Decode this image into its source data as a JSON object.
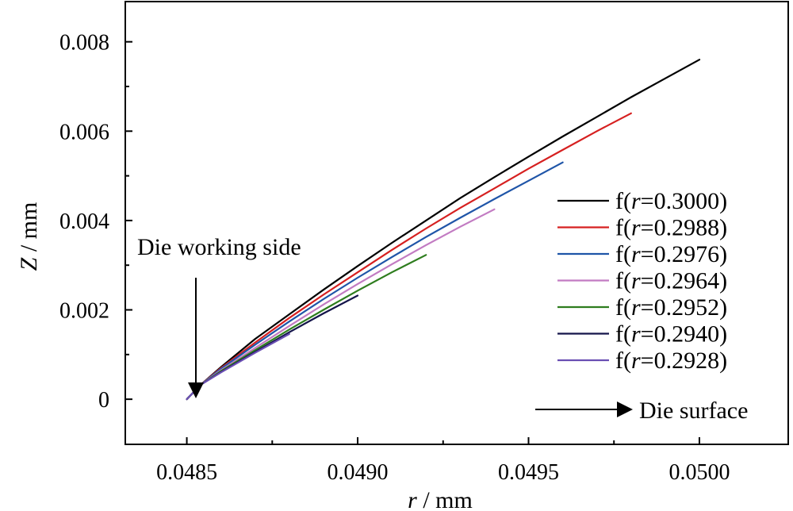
{
  "chart_data": {
    "type": "line",
    "title": "",
    "xlabel": {
      "var": "r",
      "unit": " / mm"
    },
    "ylabel": {
      "var": "Z",
      "unit": " / mm"
    },
    "xlim": [
      0.04832,
      0.05026
    ],
    "ylim": [
      -0.00101,
      0.0089
    ],
    "xticks": [
      0.0485,
      0.049,
      0.0495,
      0.05
    ],
    "xtick_labels": [
      "0.0485",
      "0.0490",
      "0.0495",
      "0.0500"
    ],
    "yticks": [
      0,
      0.002,
      0.004,
      0.006,
      0.008
    ],
    "ytick_labels": [
      "0",
      "0.002",
      "0.004",
      "0.006",
      "0.008"
    ],
    "grid": false,
    "legend_position": "right",
    "series": [
      {
        "name": {
          "pre": "f(",
          "var": "r",
          "post": "=0.3000)"
        },
        "color": "#000000",
        "x": [
          0.0485,
          0.04854,
          0.0486,
          0.0487,
          0.0488,
          0.0489,
          0.049,
          0.0491,
          0.0492,
          0.0493,
          0.0494,
          0.0495,
          0.0496,
          0.0497,
          0.0498,
          0.0499,
          0.05
        ],
        "y": [
          0,
          0.00032,
          0.00072,
          0.00135,
          0.0019,
          0.00245,
          0.00298,
          0.0035,
          0.004,
          0.0045,
          0.00497,
          0.00543,
          0.00588,
          0.00632,
          0.00676,
          0.00718,
          0.0076
        ]
      },
      {
        "name": {
          "pre": "f(",
          "var": "r",
          "post": "=0.2988)"
        },
        "color": "#d62020",
        "x": [
          0.0485,
          0.04854,
          0.0486,
          0.0487,
          0.0488,
          0.0489,
          0.049,
          0.0491,
          0.0492,
          0.0493,
          0.0494,
          0.0495,
          0.0496,
          0.0497,
          0.0498
        ],
        "y": [
          0,
          0.00032,
          0.0007,
          0.00127,
          0.00182,
          0.00234,
          0.00284,
          0.00334,
          0.00382,
          0.00428,
          0.00472,
          0.00516,
          0.00558,
          0.006,
          0.0064
        ]
      },
      {
        "name": {
          "pre": "f(",
          "var": "r",
          "post": "=0.2976)"
        },
        "color": "#1f55a8",
        "x": [
          0.0485,
          0.04854,
          0.0486,
          0.0487,
          0.0488,
          0.0489,
          0.049,
          0.0491,
          0.0492,
          0.0493,
          0.0494,
          0.0495,
          0.0496
        ],
        "y": [
          0,
          0.00032,
          0.00068,
          0.00122,
          0.00174,
          0.00224,
          0.00272,
          0.00318,
          0.00363,
          0.00406,
          0.00448,
          0.00489,
          0.0053
        ]
      },
      {
        "name": {
          "pre": "f(",
          "var": "r",
          "post": "=0.2964)"
        },
        "color": "#c27bc2",
        "x": [
          0.0485,
          0.04854,
          0.0486,
          0.0487,
          0.0488,
          0.0489,
          0.049,
          0.0491,
          0.0492,
          0.0493,
          0.0494
        ],
        "y": [
          0,
          0.00032,
          0.00065,
          0.00115,
          0.00164,
          0.00212,
          0.00258,
          0.00302,
          0.00345,
          0.00386,
          0.00425
        ]
      },
      {
        "name": {
          "pre": "f(",
          "var": "r",
          "post": "=0.2952)"
        },
        "color": "#2e7d1e",
        "x": [
          0.0485,
          0.04854,
          0.0486,
          0.0487,
          0.0488,
          0.0489,
          0.049,
          0.0491,
          0.0492
        ],
        "y": [
          0,
          0.00032,
          0.00063,
          0.0011,
          0.00156,
          0.002,
          0.00243,
          0.00284,
          0.00323
        ]
      },
      {
        "name": {
          "pre": "f(",
          "var": "r",
          "post": "=0.2940)"
        },
        "color": "#14144a",
        "x": [
          0.0485,
          0.04854,
          0.0486,
          0.0487,
          0.0488,
          0.0489,
          0.049
        ],
        "y": [
          0,
          0.00032,
          0.00061,
          0.00106,
          0.0015,
          0.00192,
          0.00232
        ]
      },
      {
        "name": {
          "pre": "f(",
          "var": "r",
          "post": "=0.2928)"
        },
        "color": "#6a4fb3",
        "x": [
          0.0485,
          0.04854,
          0.0486,
          0.0487,
          0.0488
        ],
        "y": [
          0,
          0.00032,
          0.0006,
          0.00104,
          0.00146
        ]
      }
    ],
    "annotations": [
      {
        "text": "Die working side",
        "arrow": "down"
      },
      {
        "text": "Die surface",
        "arrow": "right"
      }
    ]
  }
}
